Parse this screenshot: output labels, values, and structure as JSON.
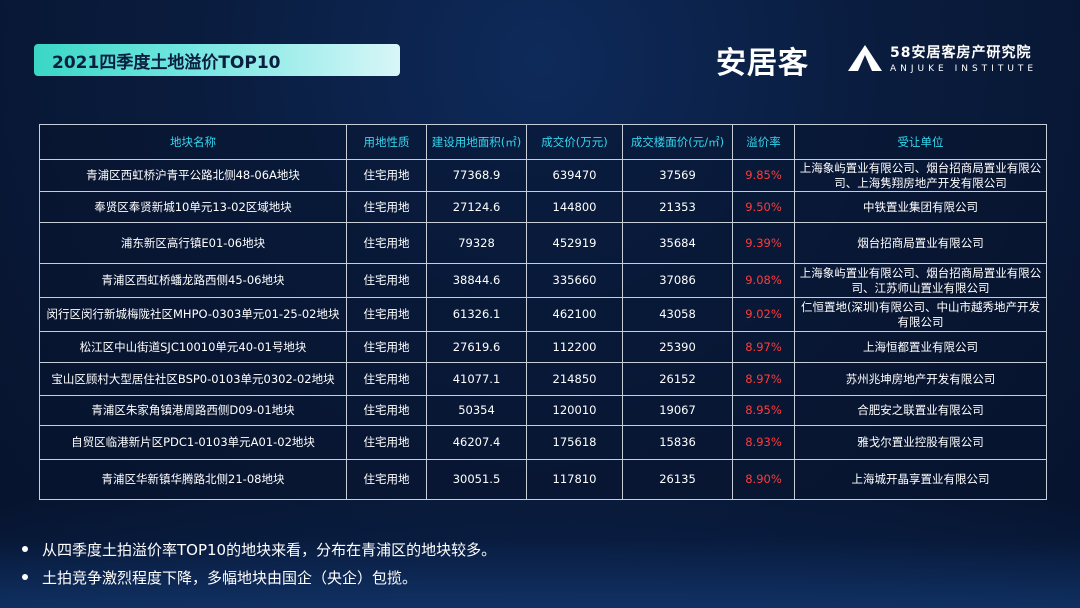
{
  "title": "2021四季度土地溢价TOP10",
  "logos": {
    "brand": "安居客",
    "institute_name": "58安居客房产研究院",
    "institute_en": "ANJUKE INSTITUTE"
  },
  "table": {
    "headers": [
      "地块名称",
      "用地性质",
      "建设用地面积(㎡)",
      "成交价(万元)",
      "成交楼面价(元/㎡)",
      "溢价率",
      "受让单位"
    ],
    "rows": [
      [
        "青浦区西虹桥沪青平公路北侧48-06A地块",
        "住宅用地",
        "77368.9",
        "639470",
        "37569",
        "9.85%",
        "上海象屿置业有限公司、烟台招商局置业有限公司、上海隽翔房地产开发有限公司"
      ],
      [
        "奉贤区奉贤新城10单元13-02区域地块",
        "住宅用地",
        "27124.6",
        "144800",
        "21353",
        "9.50%",
        "中铁置业集团有限公司"
      ],
      [
        "浦东新区高行镇E01-06地块",
        "住宅用地",
        "79328",
        "452919",
        "35684",
        "9.39%",
        "烟台招商局置业有限公司"
      ],
      [
        "青浦区西虹桥蟠龙路西侧45-06地块",
        "住宅用地",
        "38844.6",
        "335660",
        "37086",
        "9.08%",
        "上海象屿置业有限公司、烟台招商局置业有限公司、江苏师山置业有限公司"
      ],
      [
        "闵行区闵行新城梅陇社区MHPO-0303单元01-25-02地块",
        "住宅用地",
        "61326.1",
        "462100",
        "43058",
        "9.02%",
        "仁恒置地(深圳)有限公司、中山市越秀地产开发有限公司"
      ],
      [
        "松江区中山街道SJC10010单元40-01号地块",
        "住宅用地",
        "27619.6",
        "112200",
        "25390",
        "8.97%",
        "上海恒都置业有限公司"
      ],
      [
        "宝山区顾村大型居住社区BSP0-0103单元0302-02地块",
        "住宅用地",
        "41077.1",
        "214850",
        "26152",
        "8.97%",
        "苏州兆坤房地产开发有限公司"
      ],
      [
        "青浦区朱家角镇港周路西侧D09-01地块",
        "住宅用地",
        "50354",
        "120010",
        "19067",
        "8.95%",
        "合肥安之联置业有限公司"
      ],
      [
        "自贸区临港新片区PDC1-0103单元A01-02地块",
        "住宅用地",
        "46207.4",
        "175618",
        "15836",
        "8.93%",
        "雅戈尔置业控股有限公司"
      ],
      [
        "青浦区华新镇华腾路北侧21-08地块",
        "住宅用地",
        "30051.5",
        "117810",
        "26135",
        "8.90%",
        "上海城开晶享置业有限公司"
      ]
    ]
  },
  "bullets": [
    "从四季度土拍溢价率TOP10的地块来看，分布在青浦区的地块较多。",
    "土拍竞争激烈程度下降，多幅地块由国企（央企）包揽。"
  ],
  "colors": {
    "header_text": "#33d7ef",
    "rate_text": "#ff3b3b",
    "title_bar": "#3ad6c5"
  }
}
